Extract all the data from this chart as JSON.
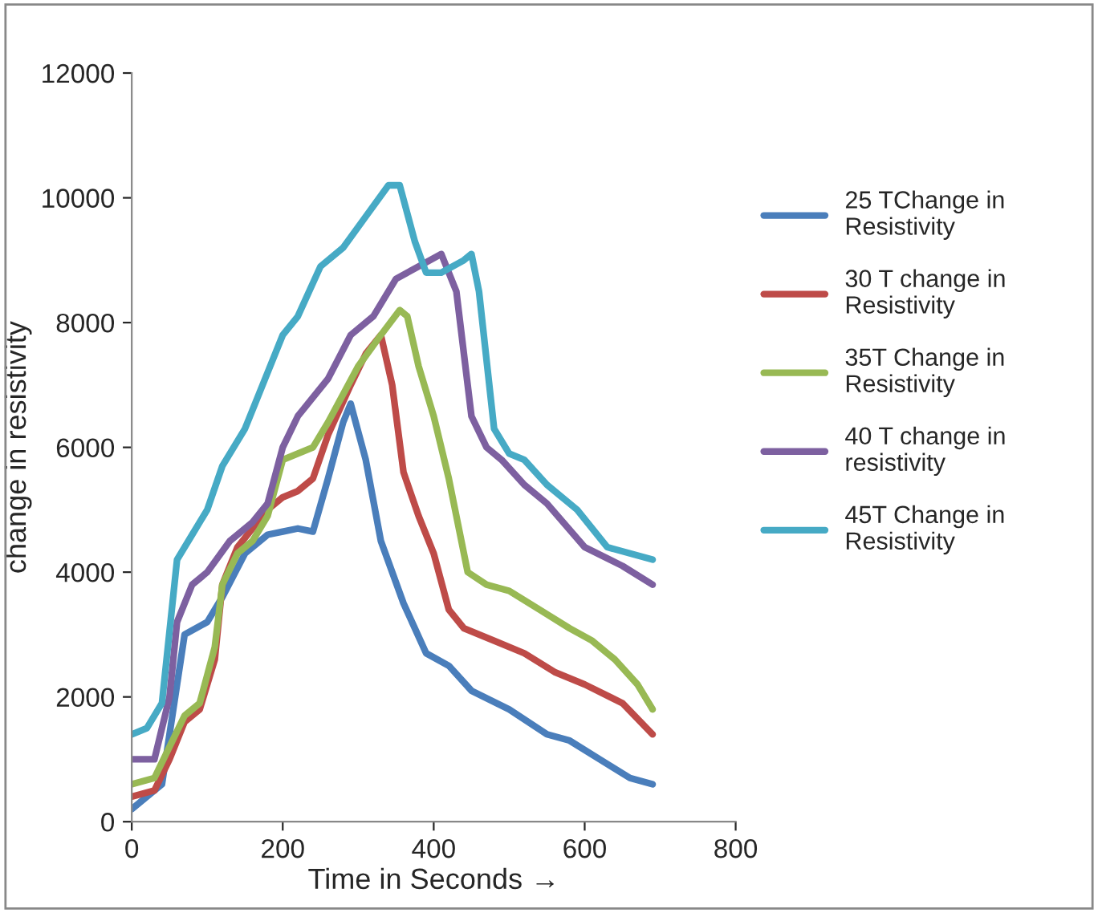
{
  "chart_data": {
    "type": "line",
    "xlabel": "Time in Seconds →",
    "ylabel": "change in resistivity",
    "xlim": [
      0,
      800
    ],
    "xticks": [
      0,
      200,
      400,
      600,
      800
    ],
    "ylim": [
      0,
      12000
    ],
    "yticks": [
      0,
      2000,
      4000,
      6000,
      8000,
      10000,
      12000
    ],
    "grid": false,
    "legend": "right",
    "line_style": "solid",
    "marker": "none",
    "series": [
      {
        "name": "25 TChange in Resistivity",
        "color": "#4a7ebb",
        "x": [
          0,
          40,
          70,
          100,
          120,
          150,
          180,
          200,
          220,
          240,
          260,
          280,
          290,
          310,
          330,
          360,
          390,
          420,
          450,
          500,
          550,
          580,
          620,
          660,
          690
        ],
        "values": [
          200,
          600,
          3000,
          3200,
          3600,
          4300,
          4600,
          4650,
          4700,
          4650,
          5500,
          6400,
          6700,
          5800,
          4500,
          3500,
          2700,
          2500,
          2100,
          1800,
          1400,
          1300,
          1000,
          700,
          600
        ]
      },
      {
        "name": "30 T change in Resistivity",
        "color": "#be4b48",
        "x": [
          0,
          30,
          50,
          70,
          90,
          110,
          120,
          140,
          160,
          180,
          200,
          220,
          240,
          260,
          290,
          310,
          330,
          345,
          360,
          380,
          400,
          420,
          440,
          480,
          520,
          560,
          600,
          650,
          690
        ],
        "values": [
          400,
          500,
          1000,
          1600,
          1800,
          2600,
          3800,
          4400,
          4700,
          5000,
          5200,
          5300,
          5500,
          6200,
          7000,
          7500,
          7800,
          7000,
          5600,
          4900,
          4300,
          3400,
          3100,
          2900,
          2700,
          2400,
          2200,
          1900,
          1400
        ]
      },
      {
        "name": "35T Change in Resistivity",
        "color": "#98b954",
        "x": [
          0,
          30,
          50,
          70,
          90,
          110,
          120,
          140,
          160,
          180,
          200,
          220,
          240,
          260,
          300,
          330,
          355,
          365,
          380,
          400,
          420,
          445,
          470,
          500,
          540,
          580,
          610,
          640,
          670,
          690
        ],
        "values": [
          600,
          700,
          1200,
          1700,
          1900,
          2800,
          3800,
          4300,
          4500,
          4900,
          5800,
          5900,
          6000,
          6400,
          7300,
          7800,
          8200,
          8100,
          7300,
          6500,
          5500,
          4000,
          3800,
          3700,
          3400,
          3100,
          2900,
          2600,
          2200,
          1800
        ]
      },
      {
        "name": "40 T change in resistivity",
        "color": "#7d60a0",
        "x": [
          0,
          30,
          50,
          60,
          80,
          100,
          130,
          160,
          180,
          200,
          220,
          240,
          260,
          290,
          320,
          350,
          380,
          410,
          430,
          450,
          470,
          490,
          520,
          550,
          600,
          650,
          690
        ],
        "values": [
          1000,
          1000,
          2000,
          3200,
          3800,
          4000,
          4500,
          4800,
          5100,
          6000,
          6500,
          6800,
          7100,
          7800,
          8100,
          8700,
          8900,
          9100,
          8500,
          6500,
          6000,
          5800,
          5400,
          5100,
          4400,
          4100,
          3800
        ]
      },
      {
        "name": "45T Change in Resistivity",
        "color": "#46aac5",
        "x": [
          0,
          20,
          40,
          60,
          80,
          100,
          120,
          150,
          180,
          200,
          220,
          250,
          280,
          310,
          340,
          355,
          375,
          390,
          410,
          440,
          450,
          460,
          480,
          500,
          520,
          550,
          590,
          630,
          690
        ],
        "values": [
          1400,
          1500,
          1900,
          4200,
          4600,
          5000,
          5700,
          6300,
          7200,
          7800,
          8100,
          8900,
          9200,
          9700,
          10200,
          10200,
          9300,
          8800,
          8800,
          9000,
          9100,
          8500,
          6300,
          5900,
          5800,
          5400,
          5000,
          4400,
          4200
        ]
      }
    ]
  }
}
